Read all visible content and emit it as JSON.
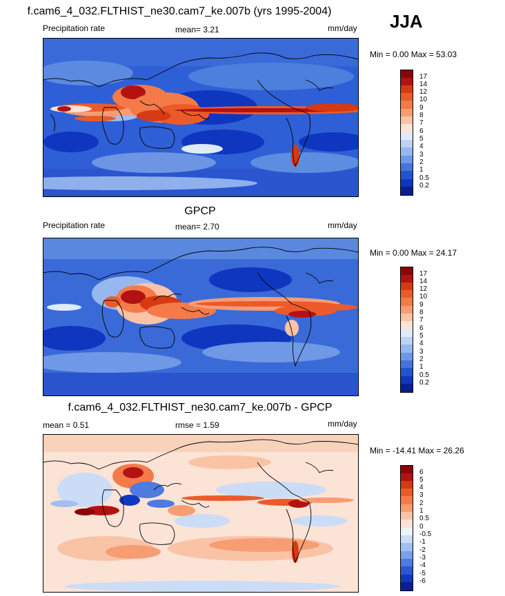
{
  "season": "JJA",
  "panels": [
    {
      "title": "f.cam6_4_032.FLTHIST_ne30.cam7_ke.007b (yrs 1995-2004)",
      "left_label": "Precipitation rate",
      "stat_text": "mean=   3.21",
      "units": "mm/day",
      "minmax": "Min =   0.00 Max =  53.03",
      "colorbar": {
        "labels": [
          "17",
          "14",
          "12",
          "10",
          "9",
          "8",
          "7",
          "6",
          "5",
          "4",
          "3",
          "2",
          "1",
          "0.5",
          "0.2"
        ],
        "colors": [
          "#8a0606",
          "#b31212",
          "#d53a12",
          "#ec5a2a",
          "#f47a4a",
          "#f79d74",
          "#f9c3a6",
          "#fbe3d6",
          "#deebfb",
          "#bcd3f5",
          "#97b8ee",
          "#6f98e6",
          "#4774dc",
          "#2353d1",
          "#0f36bf",
          "#081f90"
        ]
      }
    },
    {
      "title": "GPCP",
      "left_label": "Precipitation rate",
      "stat_text": "mean=   2.70",
      "units": "mm/day",
      "minmax": "Min =   0.00 Max =  24.17",
      "colorbar": {
        "labels": [
          "17",
          "14",
          "12",
          "10",
          "9",
          "8",
          "7",
          "6",
          "5",
          "4",
          "3",
          "2",
          "1",
          "0.5",
          "0.2"
        ],
        "colors": [
          "#8a0606",
          "#b31212",
          "#d53a12",
          "#ec5a2a",
          "#f47a4a",
          "#f79d74",
          "#f9c3a6",
          "#fbe3d6",
          "#deebfb",
          "#bcd3f5",
          "#97b8ee",
          "#6f98e6",
          "#4774dc",
          "#2353d1",
          "#0f36bf",
          "#081f90"
        ]
      }
    },
    {
      "title": "f.cam6_4_032.FLTHIST_ne30.cam7_ke.007b - GPCP",
      "left_label": "mean =   0.51",
      "stat_text": "rmse =   1.59",
      "units": "mm/day",
      "minmax": "Min = -14.41 Max =  26.26",
      "colorbar": {
        "labels": [
          "6",
          "5",
          "4",
          "3",
          "2",
          "1",
          "0.5",
          "0",
          "-0.5",
          "-1",
          "-2",
          "-3",
          "-4",
          "-5",
          "-6"
        ],
        "colors": [
          "#8a0606",
          "#b31212",
          "#d53a12",
          "#ec5a2a",
          "#f47a4a",
          "#f79d74",
          "#f9c3a6",
          "#fbe3d6",
          "#eef3fb",
          "#cbdcf6",
          "#a3bff0",
          "#7ba0e8",
          "#4f7ade",
          "#2a58d2",
          "#1237c0",
          "#081f90"
        ]
      }
    }
  ]
}
